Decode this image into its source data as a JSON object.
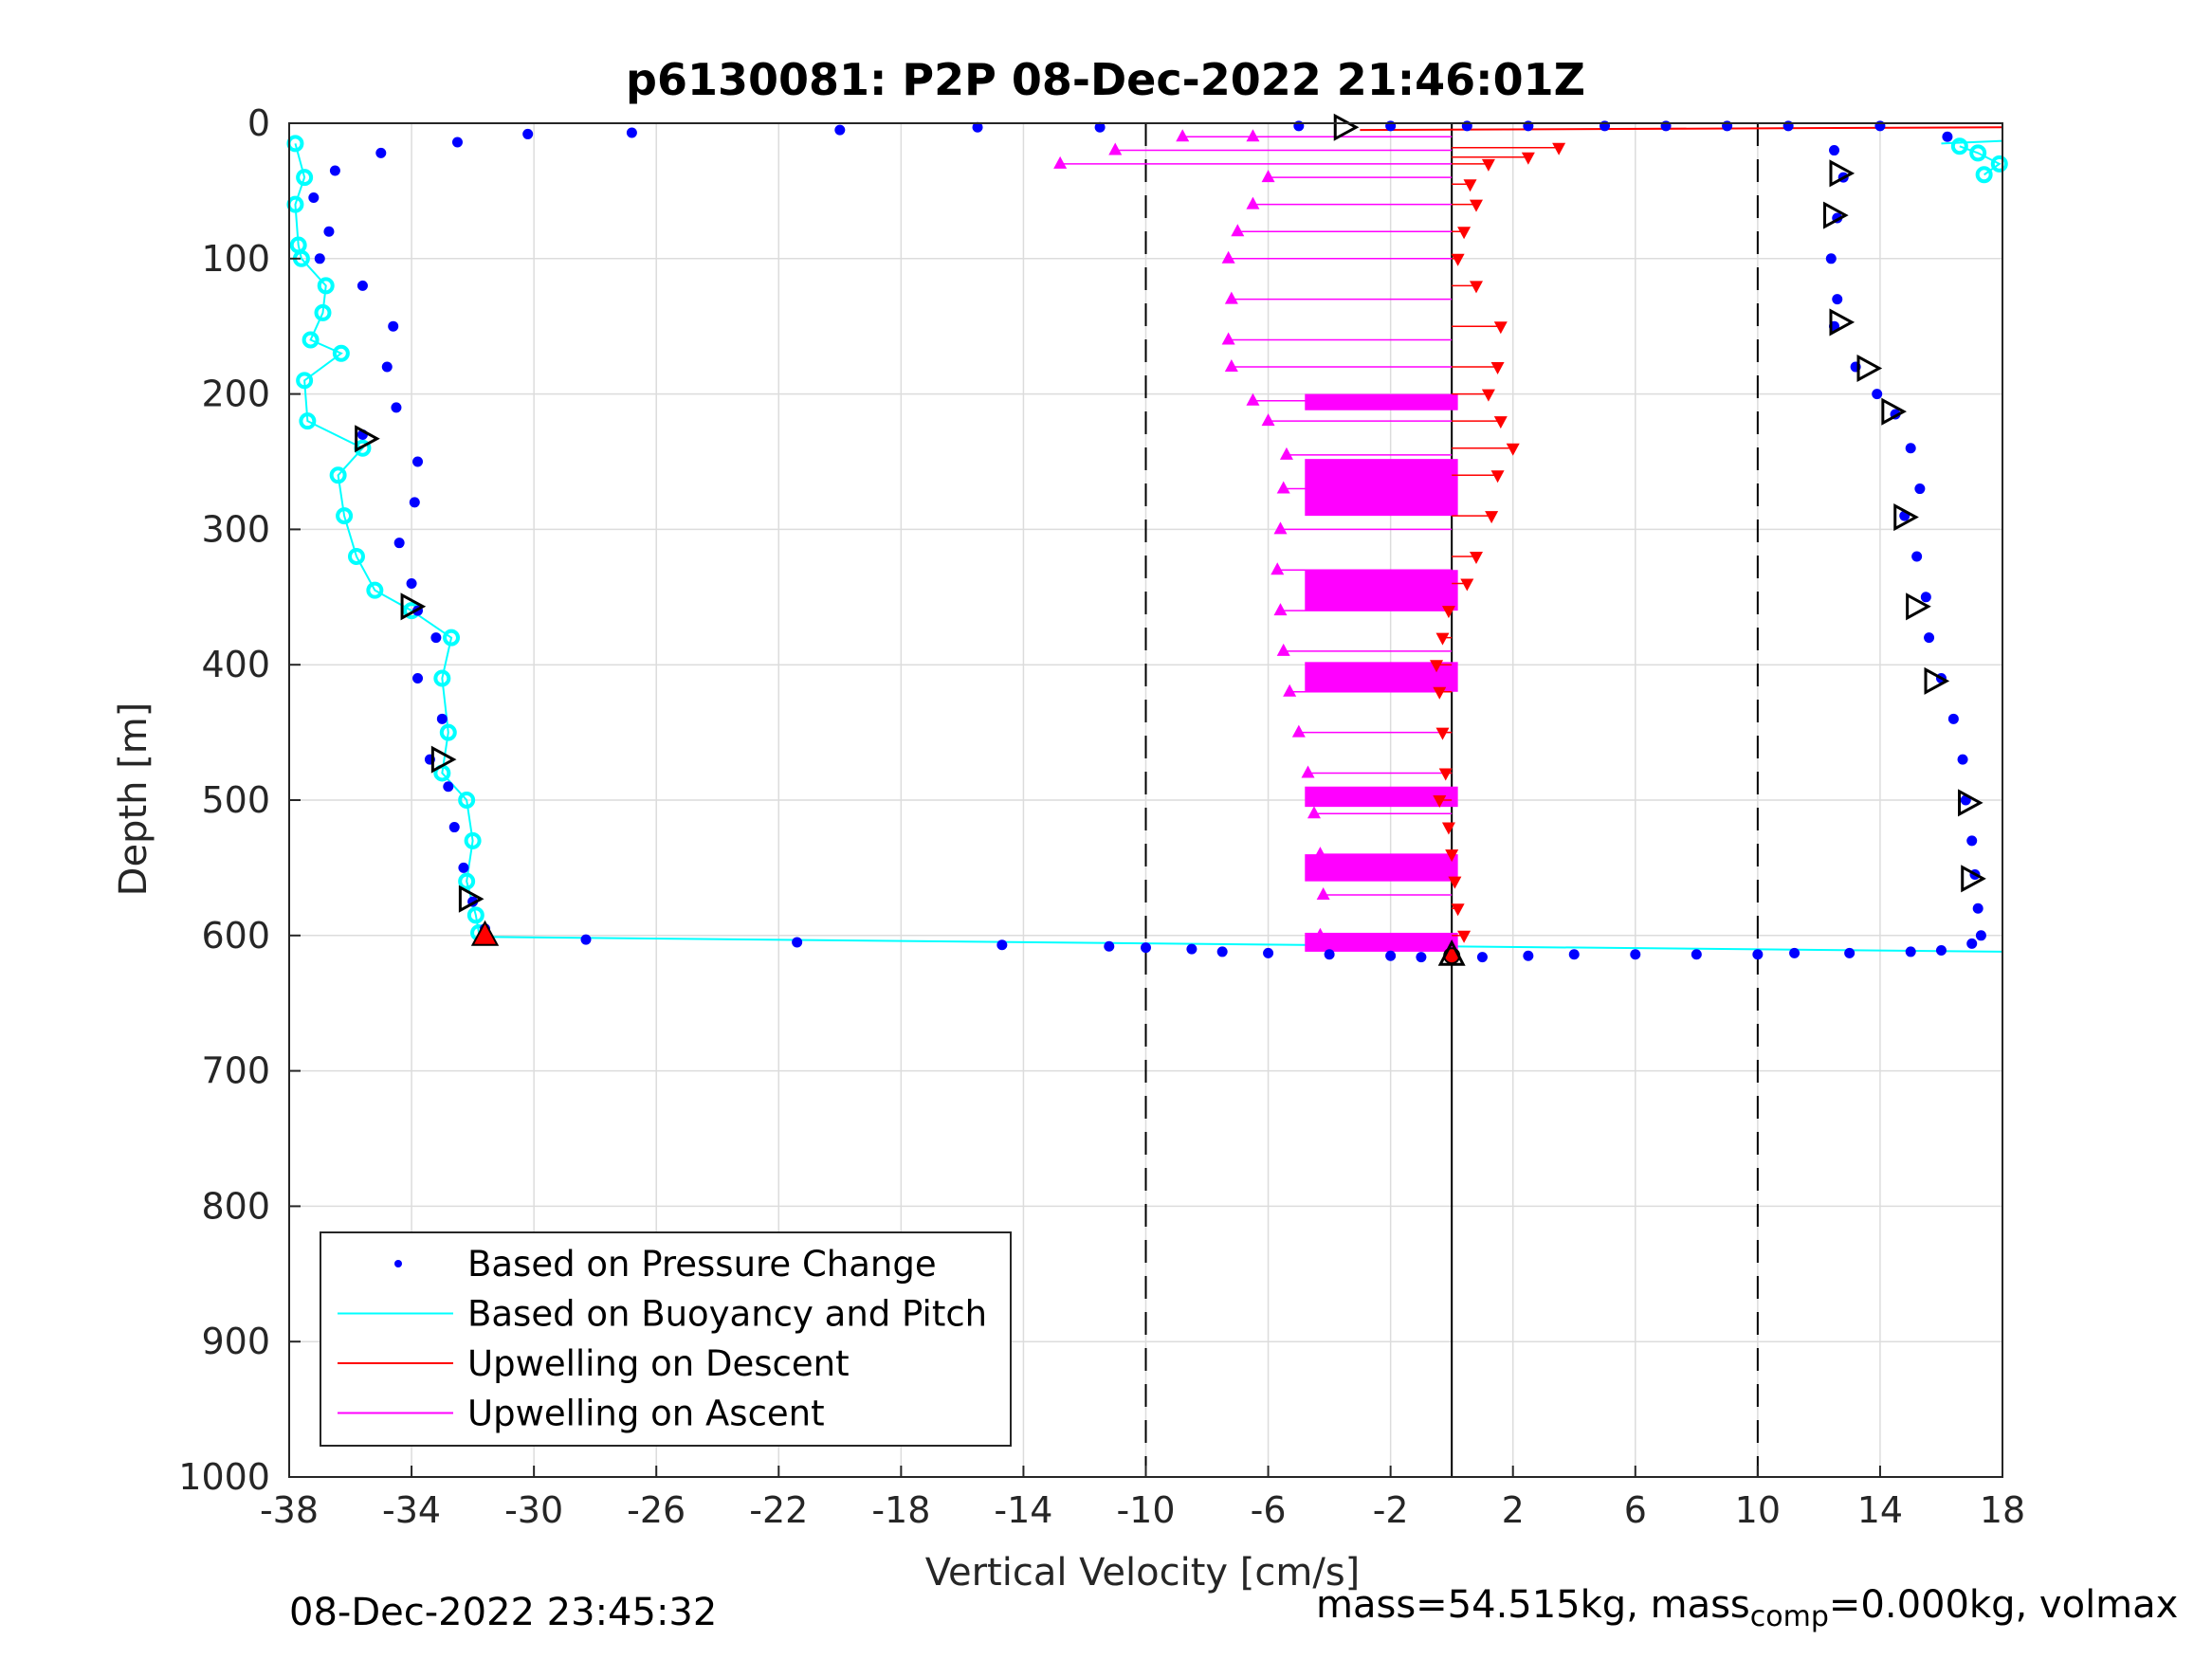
{
  "chart_data": {
    "type": "scatter",
    "title": "p6130081: P2P 08-Dec-2022 21:46:01Z",
    "xlabel": "Vertical Velocity [cm/s]",
    "ylabel": "Depth [m]",
    "xlim": [
      -38,
      18
    ],
    "ylim": [
      0,
      1000
    ],
    "y_reversed": true,
    "grid": true,
    "xticks": [
      "-38",
      "-34",
      "-30",
      "-26",
      "-22",
      "-18",
      "-14",
      "-10",
      "-6",
      "-2",
      "2",
      "6",
      "10",
      "14",
      "18"
    ],
    "yticks": [
      "0",
      "100",
      "200",
      "300",
      "400",
      "500",
      "600",
      "700",
      "800",
      "900",
      "1000"
    ],
    "reference_lines": [
      {
        "x": -10,
        "style": "dashed"
      },
      {
        "x": 0,
        "style": "solid"
      },
      {
        "x": 10,
        "style": "dashed"
      }
    ],
    "legend": {
      "position": "bottom-left",
      "entries": [
        {
          "label": "Based on Pressure Change",
          "color": "#0000ff",
          "marker": "dot"
        },
        {
          "label": "Based on Buoyancy and Pitch",
          "color": "#00ffff",
          "marker": "line"
        },
        {
          "label": "Upwelling on Descent",
          "color": "#ff0000",
          "marker": "line"
        },
        {
          "label": "Upwelling on Ascent",
          "color": "#ff00ff",
          "marker": "line"
        }
      ]
    },
    "series": [
      {
        "name": "Based on Pressure Change",
        "color": "#0000ff",
        "descent_profile": [
          [
            -30.2,
            8
          ],
          [
            -32.5,
            14
          ],
          [
            -35.0,
            22
          ],
          [
            -36.5,
            35
          ],
          [
            -37.2,
            55
          ],
          [
            -36.7,
            80
          ],
          [
            -37.0,
            100
          ],
          [
            -35.6,
            120
          ],
          [
            -34.6,
            150
          ],
          [
            -34.8,
            180
          ],
          [
            -34.5,
            210
          ],
          [
            -35.6,
            230
          ],
          [
            -33.8,
            250
          ],
          [
            -33.9,
            280
          ],
          [
            -34.4,
            310
          ],
          [
            -34.0,
            340
          ],
          [
            -33.8,
            360
          ],
          [
            -33.2,
            380
          ],
          [
            -33.8,
            410
          ],
          [
            -33.0,
            440
          ],
          [
            -33.4,
            470
          ],
          [
            -32.8,
            490
          ],
          [
            -32.6,
            520
          ],
          [
            -32.3,
            550
          ],
          [
            -32.0,
            575
          ],
          [
            -31.6,
            595
          ]
        ],
        "ascent_profile": [
          [
            16.2,
            10
          ],
          [
            12.5,
            20
          ],
          [
            12.8,
            40
          ],
          [
            12.6,
            70
          ],
          [
            12.4,
            100
          ],
          [
            12.6,
            130
          ],
          [
            12.5,
            150
          ],
          [
            13.2,
            180
          ],
          [
            13.9,
            200
          ],
          [
            14.5,
            215
          ],
          [
            15.0,
            240
          ],
          [
            15.3,
            270
          ],
          [
            14.8,
            290
          ],
          [
            15.2,
            320
          ],
          [
            15.5,
            350
          ],
          [
            15.6,
            380
          ],
          [
            16.0,
            410
          ],
          [
            16.4,
            440
          ],
          [
            16.7,
            470
          ],
          [
            16.8,
            500
          ],
          [
            17.0,
            530
          ],
          [
            17.1,
            555
          ],
          [
            17.2,
            580
          ],
          [
            17.3,
            600
          ]
        ],
        "surface_points": [
          [
            -26.8,
            7
          ],
          [
            -20.0,
            5
          ],
          [
            -15.5,
            3
          ],
          [
            -11.5,
            3
          ],
          [
            -5.0,
            2
          ],
          [
            -2.0,
            2
          ],
          [
            0.5,
            2
          ],
          [
            2.5,
            2
          ],
          [
            5.0,
            2
          ],
          [
            7.0,
            2
          ],
          [
            9.0,
            2
          ],
          [
            11.0,
            2
          ],
          [
            14.0,
            2
          ]
        ],
        "bottom_points": [
          [
            -28.3,
            603
          ],
          [
            -21.4,
            605
          ],
          [
            -14.7,
            607
          ],
          [
            -11.2,
            608
          ],
          [
            -10.0,
            609
          ],
          [
            -8.5,
            610
          ],
          [
            -7.5,
            612
          ],
          [
            -6.0,
            613
          ],
          [
            -4.0,
            614
          ],
          [
            -2.0,
            615
          ],
          [
            -1.0,
            616
          ],
          [
            1.0,
            616
          ],
          [
            2.5,
            615
          ],
          [
            4.0,
            614
          ],
          [
            6.0,
            614
          ],
          [
            8.0,
            614
          ],
          [
            10.0,
            614
          ],
          [
            11.2,
            613
          ],
          [
            13.0,
            613
          ],
          [
            15.0,
            612
          ],
          [
            16.0,
            611
          ],
          [
            17.0,
            606
          ]
        ]
      },
      {
        "name": "Based on Buoyancy and Pitch",
        "color": "#00ffff",
        "descent_profile": [
          [
            -37.8,
            15
          ],
          [
            -37.5,
            40
          ],
          [
            -37.8,
            60
          ],
          [
            -37.7,
            90
          ],
          [
            -37.6,
            100
          ],
          [
            -36.8,
            120
          ],
          [
            -36.9,
            140
          ],
          [
            -37.3,
            160
          ],
          [
            -36.3,
            170
          ],
          [
            -37.5,
            190
          ],
          [
            -37.4,
            220
          ],
          [
            -35.6,
            240
          ],
          [
            -36.4,
            260
          ],
          [
            -36.2,
            290
          ],
          [
            -35.8,
            320
          ],
          [
            -35.2,
            345
          ],
          [
            -34.0,
            360
          ],
          [
            -32.7,
            380
          ],
          [
            -33.0,
            410
          ],
          [
            -32.8,
            450
          ],
          [
            -33.0,
            480
          ],
          [
            -32.2,
            500
          ],
          [
            -32.0,
            530
          ],
          [
            -32.2,
            560
          ],
          [
            -31.9,
            585
          ],
          [
            -31.8,
            598
          ]
        ],
        "ascent_profile": [
          [
            16.6,
            17
          ],
          [
            17.2,
            22
          ],
          [
            17.9,
            30
          ],
          [
            17.4,
            38
          ]
        ],
        "transitions": [
          [
            [
              -31.8,
              601
            ],
            [
              18,
              612
            ]
          ],
          [
            [
              16,
              15
            ],
            [
              18,
              13
            ]
          ]
        ]
      },
      {
        "name": "Upwelling on Descent",
        "color": "#ff0000",
        "values": [
          [
            3.5,
            18
          ],
          [
            2.5,
            25
          ],
          [
            1.2,
            30
          ],
          [
            0.6,
            45
          ],
          [
            0.8,
            60
          ],
          [
            0.4,
            80
          ],
          [
            0.2,
            100
          ],
          [
            0.8,
            120
          ],
          [
            1.6,
            150
          ],
          [
            1.5,
            180
          ],
          [
            1.2,
            200
          ],
          [
            1.6,
            220
          ],
          [
            2.0,
            240
          ],
          [
            1.5,
            260
          ],
          [
            1.3,
            290
          ],
          [
            0.8,
            320
          ],
          [
            0.5,
            340
          ],
          [
            -0.1,
            360
          ],
          [
            -0.3,
            380
          ],
          [
            -0.5,
            400
          ],
          [
            -0.4,
            420
          ],
          [
            -0.3,
            450
          ],
          [
            -0.2,
            480
          ],
          [
            -0.4,
            500
          ],
          [
            -0.1,
            520
          ],
          [
            0.0,
            540
          ],
          [
            0.1,
            560
          ],
          [
            0.2,
            580
          ],
          [
            0.4,
            600
          ]
        ],
        "surface_line": [
          [
            -3.0,
            5
          ],
          [
            18,
            3
          ]
        ]
      },
      {
        "name": "Upwelling on Ascent",
        "color": "#ff00ff",
        "values": [
          [
            -12.8,
            30
          ],
          [
            -11.0,
            20
          ],
          [
            -8.8,
            10
          ],
          [
            -6.5,
            10
          ],
          [
            -6.0,
            40
          ],
          [
            -6.5,
            60
          ],
          [
            -7.0,
            80
          ],
          [
            -7.3,
            100
          ],
          [
            -7.2,
            130
          ],
          [
            -7.3,
            160
          ],
          [
            -7.2,
            180
          ],
          [
            -6.5,
            205
          ],
          [
            -6.0,
            220
          ],
          [
            -5.4,
            245
          ],
          [
            -5.5,
            270
          ],
          [
            -5.6,
            300
          ],
          [
            -5.7,
            330
          ],
          [
            -5.6,
            360
          ],
          [
            -5.5,
            390
          ],
          [
            -5.3,
            420
          ],
          [
            -5.0,
            450
          ],
          [
            -4.7,
            480
          ],
          [
            -4.5,
            510
          ],
          [
            -4.3,
            540
          ],
          [
            -4.2,
            570
          ],
          [
            -4.3,
            600
          ]
        ],
        "bands": [
          [
            200,
            212
          ],
          [
            248,
            290
          ],
          [
            330,
            360
          ],
          [
            398,
            420
          ],
          [
            490,
            505
          ],
          [
            540,
            560
          ],
          [
            598,
            612
          ]
        ]
      }
    ],
    "special_markers": {
      "open_triangles_descent": [
        [
          -35.5,
          233
        ],
        [
          -34.0,
          357
        ],
        [
          -33.0,
          470
        ],
        [
          -32.1,
          573
        ]
      ],
      "open_triangles_ascent": [
        [
          -3.5,
          3
        ],
        [
          12.7,
          37
        ],
        [
          12.5,
          68
        ],
        [
          12.7,
          147
        ],
        [
          13.6,
          181
        ],
        [
          14.4,
          213
        ],
        [
          14.8,
          291
        ],
        [
          15.2,
          357
        ],
        [
          15.8,
          412
        ],
        [
          16.9,
          502
        ],
        [
          17.0,
          558
        ]
      ],
      "red_triangle_bottom": [
        -31.6,
        600
      ],
      "bottom_star": [
        0,
        615
      ]
    },
    "footer_left": "08-Dec-2022 23:45:32",
    "footer_right_parts": [
      "mass=54.515kg, mass",
      "comp",
      "=0.000kg, volmax"
    ]
  }
}
